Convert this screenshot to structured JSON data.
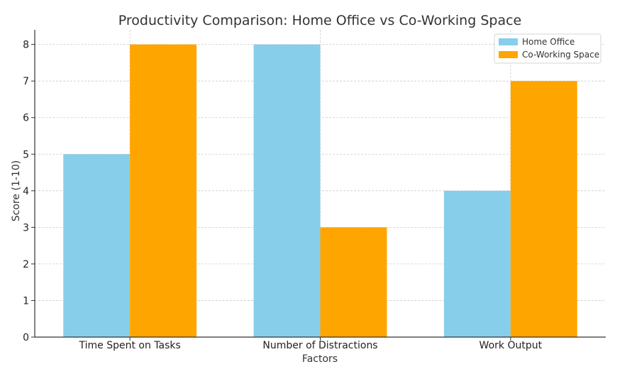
{
  "chart_data": {
    "type": "bar",
    "title": "Productivity Comparison: Home Office vs Co-Working Space",
    "xlabel": "Factors",
    "ylabel": "Score (1-10)",
    "categories": [
      "Time Spent on Tasks",
      "Number of Distractions",
      "Work Output"
    ],
    "series": [
      {
        "name": "Home Office",
        "values": [
          5,
          8,
          4
        ],
        "color": "#87CEEB"
      },
      {
        "name": "Co-Working Space",
        "values": [
          8,
          3,
          7
        ],
        "color": "#FFA500"
      }
    ],
    "ylim": [
      0,
      8.4
    ],
    "yticks": [
      0,
      1,
      2,
      3,
      4,
      5,
      6,
      7,
      8
    ],
    "grid": true,
    "legend_position": "top-right"
  }
}
